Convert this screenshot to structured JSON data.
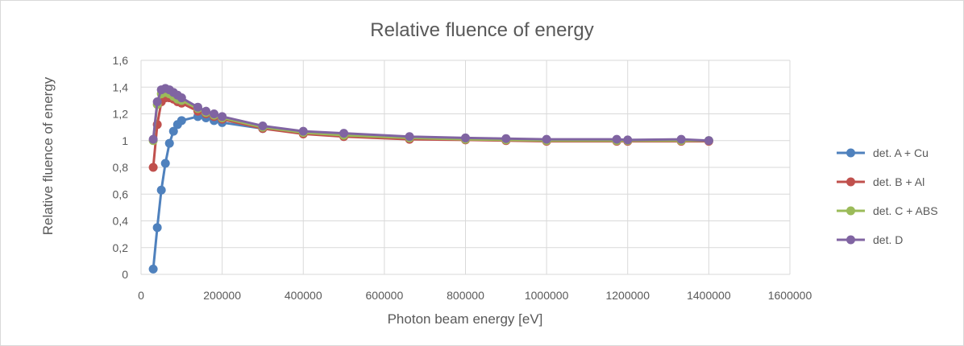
{
  "chart_data": {
    "type": "scatter",
    "title": "Relative fluence of energy",
    "xlabel": "Photon beam energy [eV]",
    "ylabel": "Relative fluence of energy",
    "xlim": [
      0,
      1600000
    ],
    "ylim": [
      0,
      1.6
    ],
    "x_ticks": [
      "0",
      "200000",
      "400000",
      "600000",
      "800000",
      "1000000",
      "1200000",
      "1400000",
      "1600000"
    ],
    "y_ticks": [
      "0",
      "0,2",
      "0,4",
      "0,6",
      "0,8",
      "1",
      "1,2",
      "1,4",
      "1,6"
    ],
    "grid": true,
    "legend_position": "right",
    "series": [
      {
        "name": "det. A + Cu",
        "color": "#4f81bd",
        "x": [
          30000,
          40000,
          50000,
          60000,
          70000,
          80000,
          90000,
          100000,
          140000,
          160000,
          180000,
          200000,
          300000,
          400000,
          500000,
          662000,
          800000,
          900000,
          1000000,
          1173000,
          1200000,
          1332000,
          1400000
        ],
        "y": [
          0.04,
          0.35,
          0.63,
          0.83,
          0.98,
          1.07,
          1.12,
          1.15,
          1.18,
          1.17,
          1.15,
          1.135,
          1.09,
          1.06,
          1.04,
          1.02,
          1.015,
          1.01,
          1.005,
          1.005,
          1.0,
          1.0,
          1.0
        ]
      },
      {
        "name": "det. B + Al",
        "color": "#c0504d",
        "x": [
          30000,
          40000,
          50000,
          60000,
          70000,
          80000,
          90000,
          100000,
          140000,
          160000,
          180000,
          200000,
          300000,
          400000,
          500000,
          662000,
          800000,
          900000,
          1000000,
          1173000,
          1200000,
          1332000,
          1400000
        ],
        "y": [
          0.8,
          1.12,
          1.29,
          1.32,
          1.32,
          1.31,
          1.29,
          1.28,
          1.22,
          1.2,
          1.18,
          1.16,
          1.09,
          1.05,
          1.03,
          1.01,
          1.005,
          1.0,
          0.995,
          0.995,
          0.995,
          0.995,
          0.995
        ]
      },
      {
        "name": "det. C + ABS",
        "color": "#9bbb59",
        "x": [
          30000,
          40000,
          50000,
          60000,
          70000,
          80000,
          90000,
          100000,
          140000,
          160000,
          180000,
          200000,
          300000,
          400000,
          500000,
          662000,
          800000,
          900000,
          1000000,
          1173000,
          1200000,
          1332000,
          1400000
        ],
        "y": [
          1.0,
          1.27,
          1.35,
          1.36,
          1.35,
          1.33,
          1.31,
          1.3,
          1.24,
          1.21,
          1.19,
          1.17,
          1.1,
          1.06,
          1.04,
          1.02,
          1.01,
          1.005,
          1.0,
          1.0,
          1.0,
          1.0,
          1.0
        ]
      },
      {
        "name": "det. D",
        "color": "#8064a2",
        "x": [
          30000,
          40000,
          50000,
          60000,
          70000,
          80000,
          90000,
          100000,
          140000,
          160000,
          180000,
          200000,
          300000,
          400000,
          500000,
          662000,
          800000,
          900000,
          1000000,
          1173000,
          1200000,
          1332000,
          1400000
        ],
        "y": [
          1.01,
          1.29,
          1.38,
          1.39,
          1.38,
          1.36,
          1.34,
          1.32,
          1.25,
          1.22,
          1.2,
          1.18,
          1.11,
          1.07,
          1.055,
          1.03,
          1.02,
          1.015,
          1.01,
          1.01,
          1.005,
          1.01,
          1.0
        ]
      }
    ]
  }
}
